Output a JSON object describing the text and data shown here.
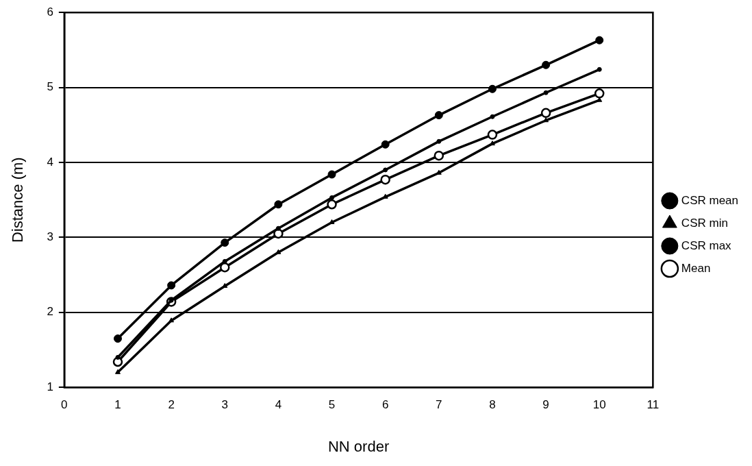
{
  "chart_data": {
    "type": "line",
    "xlabel": "NN order",
    "ylabel": "Distance (m)",
    "x": [
      1,
      2,
      3,
      4,
      5,
      6,
      7,
      8,
      9,
      10
    ],
    "xlim": [
      0,
      11
    ],
    "xticks": [
      0,
      1,
      2,
      3,
      4,
      5,
      6,
      7,
      8,
      9,
      10,
      11
    ],
    "ylim": [
      1,
      6
    ],
    "yticks": [
      1,
      2,
      3,
      4,
      5,
      6
    ],
    "grid": "y",
    "legend": "right",
    "line_style": "solid",
    "series": [
      {
        "name": "Mean",
        "color": "#000000",
        "marker": "circle",
        "values": [
          1.34,
          2.14,
          2.6,
          3.05,
          3.44,
          3.77,
          4.09,
          4.37,
          4.66,
          4.92
        ]
      },
      {
        "name": "CSR mean",
        "color": "#000000",
        "marker": "circle",
        "values": [
          1.4,
          2.16,
          2.68,
          3.12,
          3.53,
          3.9,
          4.28,
          4.61,
          4.93,
          5.24
        ]
      },
      {
        "name": "CSR min",
        "color": "#000000",
        "marker": "triangle",
        "values": [
          1.2,
          1.89,
          2.35,
          2.8,
          3.2,
          3.54,
          3.86,
          4.25,
          4.56,
          4.83
        ]
      },
      {
        "name": "CSR max",
        "color": "#000000",
        "marker": "circle",
        "values": [
          1.65,
          2.36,
          2.93,
          3.44,
          3.84,
          4.24,
          4.63,
          4.98,
          5.3,
          5.63
        ]
      }
    ]
  }
}
